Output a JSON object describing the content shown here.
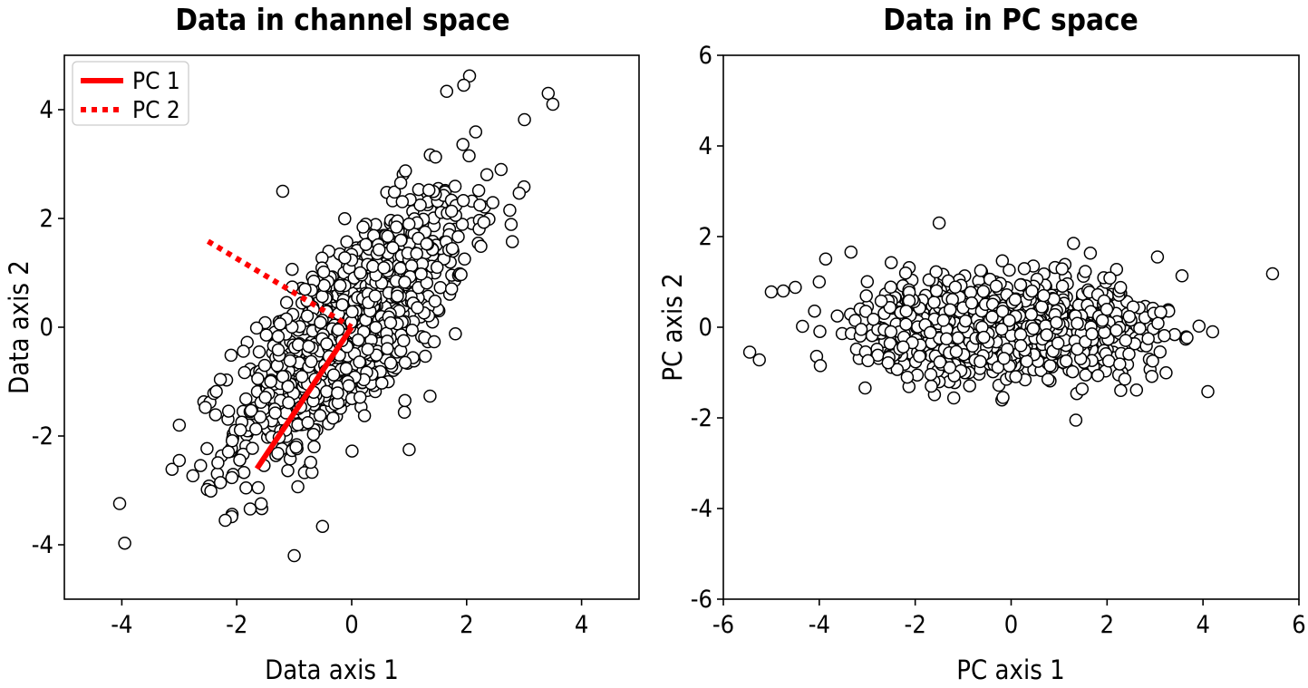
{
  "chart_data": [
    {
      "type": "scatter",
      "title": "Data in channel space",
      "xlabel": "Data axis 1",
      "ylabel": "Data axis 2",
      "xlim": [
        -5,
        5
      ],
      "ylim": [
        -5,
        5
      ],
      "xticks": [
        -4,
        -2,
        0,
        2,
        4
      ],
      "yticks": [
        -4,
        -2,
        0,
        2,
        4
      ],
      "xtick_labels": [
        "-4",
        "-2",
        "0",
        "2",
        "4"
      ],
      "ytick_labels": [
        "-4",
        "-2",
        "0",
        "2",
        "4"
      ],
      "grid": false,
      "legend_position": "top-left",
      "series": [
        {
          "kind": "scatter",
          "marker": "open-circle",
          "n_points": 1000,
          "mean": [
            0,
            0
          ],
          "cov": [
            [
              1.0,
              0.9
            ],
            [
              0.9,
              1.5
            ]
          ],
          "sample_points": [
            [
              -3.95,
              -3.97
            ],
            [
              -1.0,
              -4.2
            ],
            [
              3.42,
              4.3
            ],
            [
              3.5,
              4.1
            ],
            [
              2.05,
              4.62
            ],
            [
              1.95,
              4.45
            ],
            [
              -1.2,
              2.5
            ],
            [
              2.6,
              2.9
            ],
            [
              2.75,
              2.15
            ],
            [
              -3.0,
              -2.45
            ],
            [
              -3.0,
              -1.8
            ],
            [
              -2.2,
              -3.55
            ],
            [
              1.0,
              -2.25
            ]
          ]
        },
        {
          "kind": "line",
          "name": "PC 1",
          "style": "solid",
          "color": "#ff0000",
          "x": [
            -1.65,
            0
          ],
          "y": [
            -2.6,
            0
          ]
        },
        {
          "kind": "line",
          "name": "PC 2",
          "style": "dotted",
          "color": "#ff0000",
          "x": [
            -2.5,
            0
          ],
          "y": [
            1.58,
            0
          ]
        }
      ],
      "legend": [
        "PC 1",
        "PC 2"
      ]
    },
    {
      "type": "scatter",
      "title": "Data in PC space",
      "xlabel": "PC axis 1",
      "ylabel": "PC axis 2",
      "xlim": [
        -6,
        6
      ],
      "ylim": [
        -6,
        6
      ],
      "xticks": [
        -6,
        -4,
        -2,
        0,
        2,
        4,
        6
      ],
      "yticks": [
        -6,
        -4,
        -2,
        0,
        2,
        4,
        6
      ],
      "xtick_labels": [
        "-6",
        "-4",
        "-2",
        "0",
        "2",
        "4",
        "6"
      ],
      "ytick_labels": [
        "-6",
        "-4",
        "-2",
        "0",
        "2",
        "4",
        "6"
      ],
      "grid": false,
      "series": [
        {
          "kind": "scatter",
          "marker": "open-circle",
          "n_points": 1000,
          "sample_points": [
            [
              -5.45,
              -0.55
            ],
            [
              -5.25,
              -0.72
            ],
            [
              -5.0,
              0.78
            ],
            [
              -4.75,
              0.8
            ],
            [
              -4.5,
              0.88
            ],
            [
              -4.0,
              1.0
            ],
            [
              -4.35,
              0.02
            ],
            [
              5.45,
              1.18
            ],
            [
              -1.5,
              2.3
            ],
            [
              1.3,
              1.85
            ],
            [
              1.35,
              -2.05
            ],
            [
              4.1,
              -1.42
            ],
            [
              4.2,
              -0.1
            ],
            [
              3.05,
              1.55
            ]
          ]
        }
      ]
    }
  ],
  "colors": {
    "pc_line": "#ff0000",
    "marker_fill": "#ffffff",
    "marker_edge": "#000000"
  }
}
